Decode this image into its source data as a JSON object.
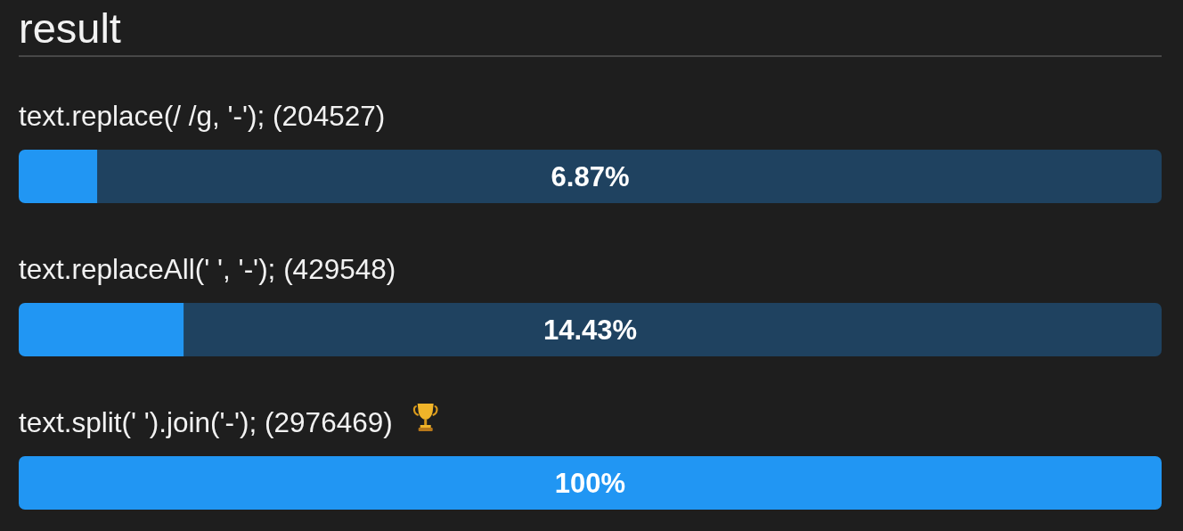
{
  "chart_data": {
    "type": "bar",
    "orientation": "horizontal",
    "title": "result",
    "categories": [
      "text.replace(/ /g, '-'); (204527)",
      "text.replaceAll(' ', '-'); (429548)",
      "text.split(' ').join('-'); (2976469)"
    ],
    "values": [
      6.87,
      14.43,
      100
    ],
    "value_labels": [
      "6.87%",
      "14.43%",
      "100%"
    ],
    "color": "#2196f3",
    "xlim": [
      0,
      100
    ],
    "tick_labels": "y"
  }
}
